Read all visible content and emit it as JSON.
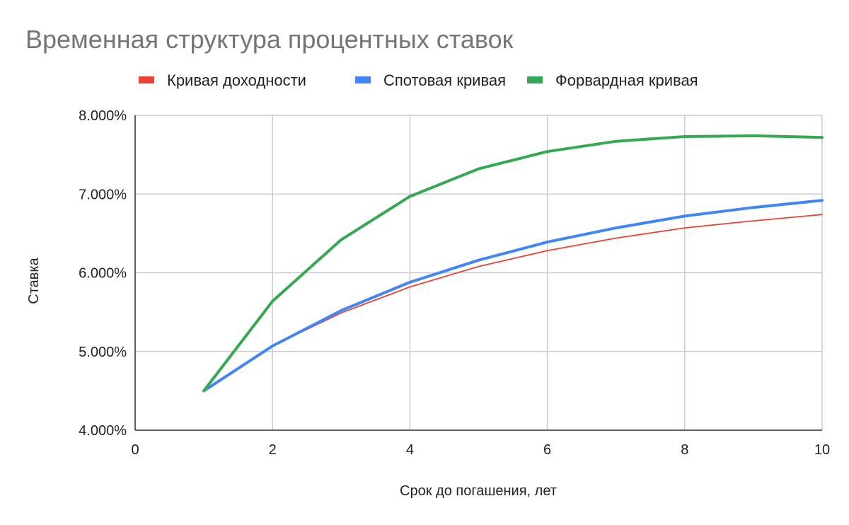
{
  "chart_data": {
    "type": "line",
    "title": "Временная структура процентных ставок",
    "xlabel": "Срок до погашения, лет",
    "ylabel": "Ставка",
    "xlim": [
      0,
      10
    ],
    "ylim": [
      4.0,
      8.0
    ],
    "x_ticks": [
      0,
      2,
      4,
      6,
      8,
      10
    ],
    "y_ticks": [
      4,
      5,
      6,
      7,
      8
    ],
    "y_tick_labels": [
      "4.000%",
      "5.000%",
      "6.000%",
      "7.000%",
      "8.000%"
    ],
    "grid": true,
    "legend_position": "top",
    "x": [
      1,
      2,
      3,
      4,
      5,
      6,
      7,
      8,
      9,
      10
    ],
    "series": [
      {
        "name": "Кривая доходности",
        "color": "#ea4335",
        "values": [
          4.5,
          5.07,
          5.49,
          5.82,
          6.08,
          6.28,
          6.44,
          6.57,
          6.66,
          6.74
        ]
      },
      {
        "name": "Спотовая кривая",
        "color": "#4285f4",
        "values": [
          4.5,
          5.07,
          5.52,
          5.88,
          6.16,
          6.39,
          6.57,
          6.72,
          6.83,
          6.92
        ]
      },
      {
        "name": "Форвардная кривая",
        "color": "#34a853",
        "values": [
          4.5,
          5.64,
          6.42,
          6.97,
          7.32,
          7.54,
          7.67,
          7.73,
          7.74,
          7.72
        ]
      }
    ]
  }
}
